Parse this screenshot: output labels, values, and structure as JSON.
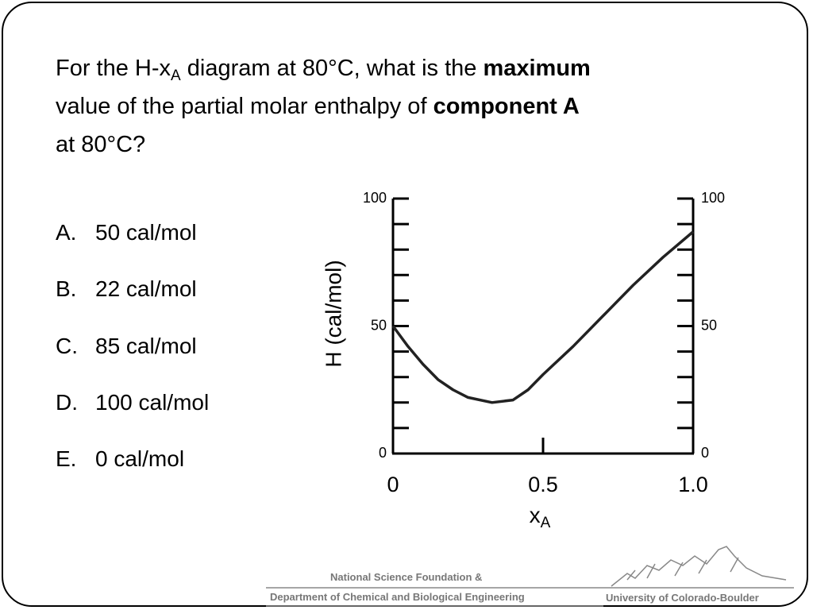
{
  "question": [
    "For the H-x",
    "A",
    " diagram at 80°C, what is the ",
    "maximum",
    " value of the partial molar enthalpy of ",
    "component A",
    " at 80°C?"
  ],
  "options": [
    {
      "letter": "A.",
      "text": "50 cal/mol"
    },
    {
      "letter": "B.",
      "text": "22 cal/mol"
    },
    {
      "letter": "C.",
      "text": "85 cal/mol"
    },
    {
      "letter": "D.",
      "text": "100 cal/mol"
    },
    {
      "letter": "E.",
      "text": "0 cal/mol"
    }
  ],
  "chart_data": {
    "type": "line",
    "x": [
      0,
      0.05,
      0.1,
      0.15,
      0.2,
      0.25,
      0.33,
      0.4,
      0.45,
      0.5,
      0.6,
      0.7,
      0.8,
      0.9,
      1.0
    ],
    "values": [
      50,
      42,
      35,
      29,
      25,
      22,
      20,
      21,
      25,
      31,
      42,
      54,
      66,
      77,
      87
    ],
    "color": "#222222",
    "xlim": [
      0,
      1
    ],
    "xticks": [
      0,
      0.5,
      {
        "value": 1,
        "label": "1.0"
      }
    ],
    "ylim": [
      0,
      100
    ],
    "yticks": [
      0,
      50,
      100
    ],
    "y2lim": [
      0,
      100
    ],
    "y2ticks": [
      0,
      50,
      100
    ],
    "yminor_ticks": [
      10,
      20,
      30,
      40,
      60,
      70,
      80,
      90
    ],
    "ylabel": "H (cal/mol)",
    "xlabel": "x",
    "xlabel_sub": "A"
  },
  "footer": {
    "line1": "National Science Foundation &",
    "line2": "Department of Chemical and Biological Engineering",
    "university": "University of Colorado-Boulder"
  }
}
